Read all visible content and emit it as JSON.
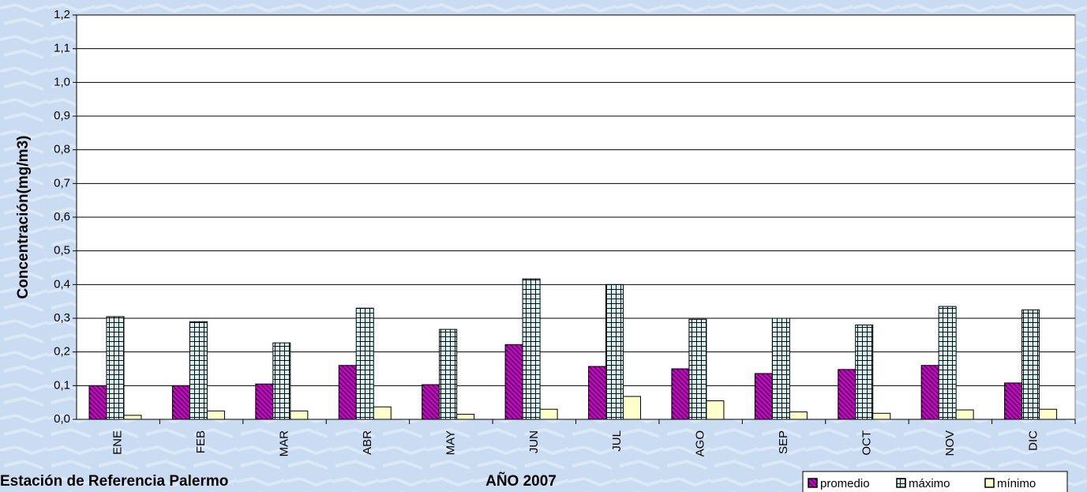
{
  "chart_data": {
    "type": "bar",
    "footnote": "Estación de Referencia Palermo",
    "xlabel": "AÑO 2007",
    "ylabel": "Concentración(mg/m3)",
    "categories": [
      "ENE",
      "FEB",
      "MAR",
      "ABR",
      "MAY",
      "JUN",
      "JUL",
      "AGO",
      "SEP",
      "OCT",
      "NOV",
      "DIC"
    ],
    "series": [
      {
        "name": "promedio",
        "color": "#cc00cc",
        "values": [
          0.1,
          0.1,
          0.105,
          0.16,
          0.103,
          0.222,
          0.157,
          0.15,
          0.136,
          0.148,
          0.16,
          0.108
        ]
      },
      {
        "name": "máximo",
        "color": "#ccffff",
        "values": [
          0.305,
          0.29,
          0.227,
          0.33,
          0.267,
          0.417,
          0.4,
          0.297,
          0.3,
          0.28,
          0.335,
          0.325
        ]
      },
      {
        "name": "mínimo",
        "color": "#ffffcc",
        "values": [
          0.012,
          0.025,
          0.025,
          0.037,
          0.015,
          0.03,
          0.068,
          0.055,
          0.022,
          0.018,
          0.028,
          0.03
        ]
      }
    ],
    "ylim": [
      0,
      1.2
    ],
    "yticks": [
      {
        "value": 0,
        "label": "0,0"
      },
      {
        "value": 0.1,
        "label": "0,1"
      },
      {
        "value": 0.2,
        "label": "0,2"
      },
      {
        "value": 0.3,
        "label": "0,3"
      },
      {
        "value": 0.4,
        "label": "0,4"
      },
      {
        "value": 0.5,
        "label": "0,5"
      },
      {
        "value": 0.6,
        "label": "0,6"
      },
      {
        "value": 0.7,
        "label": "0,7"
      },
      {
        "value": 0.8,
        "label": "0,8"
      },
      {
        "value": 0.9,
        "label": "0,9"
      },
      {
        "value": 1.0,
        "label": "1,0"
      },
      {
        "value": 1.1,
        "label": "1,1"
      },
      {
        "value": 1.2,
        "label": "1,2"
      }
    ],
    "grid": true,
    "legend": "bottom-right"
  }
}
